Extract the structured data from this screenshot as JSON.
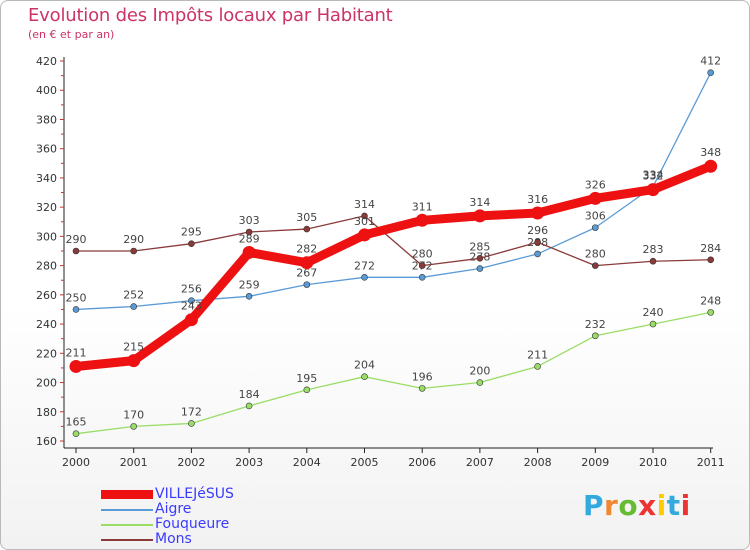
{
  "header": {
    "title": "Evolution des Impôts locaux par Habitant",
    "subtitle": "(en € et par an)"
  },
  "chart_data": {
    "type": "line",
    "title": "Evolution des Impôts locaux par Habitant",
    "subtitle": "(en € et par an)",
    "xlabel": "",
    "ylabel": "",
    "ylim": [
      160,
      420
    ],
    "y_ticks": [
      160,
      180,
      200,
      220,
      240,
      260,
      280,
      300,
      320,
      340,
      360,
      380,
      400,
      420
    ],
    "grid": false,
    "legend": "bottom-left",
    "categories": [
      "2000",
      "2001",
      "2002",
      "2003",
      "2004",
      "2005",
      "2006",
      "2007",
      "2008",
      "2009",
      "2010",
      "2011"
    ],
    "series": [
      {
        "name": "Aigre",
        "color": "#5b9bd5",
        "values": [
          250,
          252,
          256,
          259,
          267,
          272,
          272,
          278,
          288,
          306,
          334,
          412
        ],
        "labels": [
          "250",
          "252",
          "256",
          "259",
          "267",
          "272",
          "272",
          "278",
          "288",
          "306",
          "334",
          "412"
        ]
      },
      {
        "name": "Fouqueure",
        "color": "#99dd66",
        "values": [
          165,
          170,
          172,
          184,
          195,
          204,
          196,
          200,
          211,
          232,
          240,
          248
        ],
        "labels": [
          "165",
          "170",
          "172",
          "184",
          "195",
          "204",
          "196",
          "200",
          "211",
          "232",
          "240",
          "248"
        ]
      },
      {
        "name": "Mons",
        "color": "#8b3a3a",
        "values": [
          290,
          290,
          295,
          303,
          305,
          314,
          280,
          285,
          296,
          280,
          283,
          284
        ],
        "labels": [
          "290",
          "290",
          "295",
          "303",
          "305",
          "314",
          "280",
          "285",
          "296",
          "280",
          "283",
          "284"
        ]
      },
      {
        "name": "VILLEJéSUS",
        "color": "#ee1111",
        "values": [
          211,
          215,
          243,
          289,
          282,
          301,
          311,
          314,
          316,
          326,
          332,
          348
        ],
        "labels": [
          "211",
          "215",
          "243",
          "289",
          "282",
          "301",
          "311",
          "314",
          "316",
          "326",
          "332",
          "348"
        ]
      }
    ]
  },
  "legend": [
    {
      "name": "VILLEJéSUS",
      "color": "#ee1111",
      "thickness": "thick"
    },
    {
      "name": "Aigre",
      "color": "#5b9bd5",
      "thickness": "thin"
    },
    {
      "name": "Fouqueure",
      "color": "#99dd66",
      "thickness": "thin"
    },
    {
      "name": "Mons",
      "color": "#8b3a3a",
      "thickness": "thin"
    }
  ],
  "logo": {
    "letters": [
      "P",
      "r",
      "o",
      "x",
      "i",
      "t",
      "i"
    ],
    "colors": [
      "#33aadd",
      "#ee8833",
      "#66bb33",
      "#ee3333",
      "#ffcc00",
      "#33aadd",
      "#ee3333"
    ]
  }
}
